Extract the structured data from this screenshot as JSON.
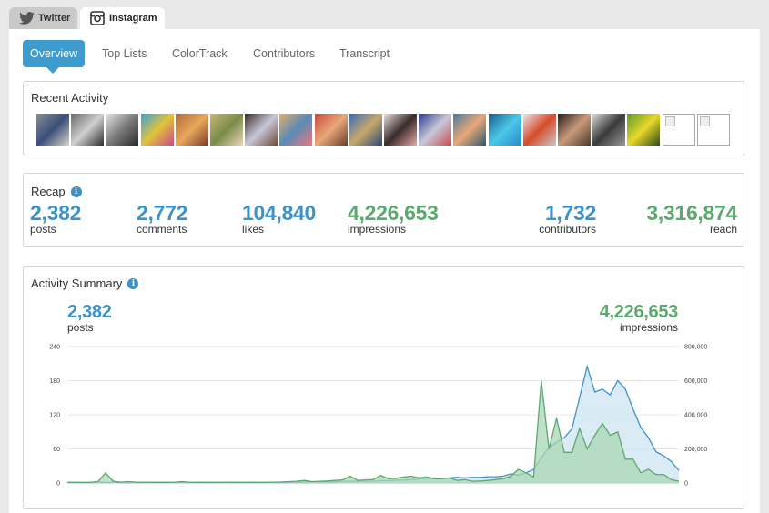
{
  "platform_tabs": [
    {
      "label": "Twitter",
      "icon": "twitter-bird-icon"
    },
    {
      "label": "Instagram",
      "icon": "instagram-camera-icon"
    }
  ],
  "sub_tabs": [
    "Overview",
    "Top Lists",
    "ColorTrack",
    "Contributors",
    "Transcript"
  ],
  "active_sub_tab": "Overview",
  "recent_activity": {
    "title": "Recent Activity",
    "thumbnails": [
      {
        "colors": [
          "#8a8e93",
          "#3a4f7a",
          "#d8d2c8"
        ]
      },
      {
        "colors": [
          "#6a6a6a",
          "#cfcfcf",
          "#2c2c2c"
        ]
      },
      {
        "colors": [
          "#e6e6e6",
          "#7b7b7b",
          "#2a2a2a"
        ]
      },
      {
        "colors": [
          "#3aa0d6",
          "#e2c23a",
          "#c84a8a"
        ]
      },
      {
        "colors": [
          "#b06a3a",
          "#e8a85a",
          "#7a3a2a"
        ]
      },
      {
        "colors": [
          "#c8b87a",
          "#7a8a4a",
          "#e8d8b8"
        ]
      },
      {
        "colors": [
          "#3a2a2a",
          "#c8c8d8",
          "#6a4a3a"
        ]
      },
      {
        "colors": [
          "#e2b06a",
          "#5a8ab8",
          "#e87a7a"
        ]
      },
      {
        "colors": [
          "#c84a3a",
          "#e8a87a",
          "#6a3a2a"
        ]
      },
      {
        "colors": [
          "#3a6ab8",
          "#c8a86a",
          "#2a4a7a"
        ]
      },
      {
        "colors": [
          "#e8e0dc",
          "#3a2a2a",
          "#e8a8a8"
        ]
      },
      {
        "colors": [
          "#2a3a8a",
          "#c8c8d8",
          "#c84a4a"
        ]
      },
      {
        "colors": [
          "#4a7a9a",
          "#e8a87a",
          "#2a5a6a"
        ]
      },
      {
        "colors": [
          "#1a5a8a",
          "#4ac8e8",
          "#2a8ac8"
        ]
      },
      {
        "colors": [
          "#e8e8e8",
          "#d84a2a",
          "#c8c8c8"
        ]
      },
      {
        "colors": [
          "#2a1a1a",
          "#c89a7a",
          "#4a3a2a"
        ]
      },
      {
        "colors": [
          "#d8d8d8",
          "#3a3a3a",
          "#9a9a9a"
        ]
      },
      {
        "colors": [
          "#5a9a2a",
          "#e8d82a",
          "#2a4a1a"
        ]
      },
      {
        "broken": true
      },
      {
        "broken": true
      }
    ]
  },
  "recap": {
    "title": "Recap",
    "stats": [
      {
        "value": "2,382",
        "label": "posts",
        "color": "blue"
      },
      {
        "value": "2,772",
        "label": "comments",
        "color": "blue"
      },
      {
        "value": "104,840",
        "label": "likes",
        "color": "blue"
      },
      {
        "value": "4,226,653",
        "label": "impressions",
        "color": "green"
      },
      {
        "value": "1,732",
        "label": "contributors",
        "color": "blue"
      },
      {
        "value": "3,316,874",
        "label": "reach",
        "color": "green"
      }
    ]
  },
  "activity_summary": {
    "title": "Activity Summary",
    "left_stat": {
      "value": "2,382",
      "label": "posts"
    },
    "right_stat": {
      "value": "4,226,653",
      "label": "impressions"
    }
  },
  "chart_data": {
    "type": "area",
    "title": "",
    "left_axis": {
      "ticks": [
        "0",
        "60",
        "120",
        "180",
        "240"
      ],
      "range": [
        0,
        240
      ]
    },
    "right_axis": {
      "ticks": [
        "0",
        "200,000",
        "400,000",
        "600,000",
        "800,000"
      ],
      "range": [
        0,
        800000
      ]
    },
    "grid": true,
    "series": [
      {
        "name": "posts",
        "axis": "left",
        "color": "#3d92c8",
        "fill": "#cfe4f3",
        "values": [
          1,
          1,
          1,
          1,
          2,
          1,
          1,
          1,
          1,
          1,
          1,
          1,
          1,
          1,
          1,
          1,
          1,
          1,
          1,
          1,
          1,
          1,
          1,
          1,
          1,
          1,
          1,
          1,
          1,
          1,
          1,
          2,
          2,
          2,
          2,
          2,
          3,
          3,
          3,
          3,
          3,
          4,
          4,
          5,
          5,
          6,
          7,
          8,
          9,
          8,
          9,
          10,
          9,
          10,
          10,
          11,
          11,
          12,
          16,
          14,
          18,
          24,
          45,
          62,
          72,
          80,
          95,
          150,
          205,
          160,
          165,
          155,
          180,
          165,
          130,
          98,
          80,
          55,
          48,
          38,
          22
        ]
      },
      {
        "name": "impressions",
        "axis": "right",
        "color": "#5ca96d",
        "fill": "#a9d7b4",
        "values": [
          5000,
          3000,
          3000,
          3000,
          8000,
          60000,
          10000,
          5000,
          8000,
          5000,
          4000,
          5000,
          4000,
          4000,
          5000,
          8000,
          5000,
          4000,
          5000,
          3000,
          3000,
          5000,
          4000,
          3000,
          4000,
          3000,
          3000,
          5000,
          6000,
          8000,
          10000,
          15000,
          8000,
          10000,
          12000,
          15000,
          18000,
          40000,
          15000,
          18000,
          20000,
          45000,
          25000,
          28000,
          35000,
          40000,
          30000,
          35000,
          25000,
          25000,
          30000,
          15000,
          20000,
          10000,
          12000,
          15000,
          20000,
          25000,
          40000,
          80000,
          60000,
          35000,
          600000,
          200000,
          380000,
          180000,
          180000,
          320000,
          200000,
          280000,
          350000,
          280000,
          300000,
          140000,
          140000,
          60000,
          80000,
          50000,
          50000,
          20000,
          10000
        ]
      }
    ]
  }
}
